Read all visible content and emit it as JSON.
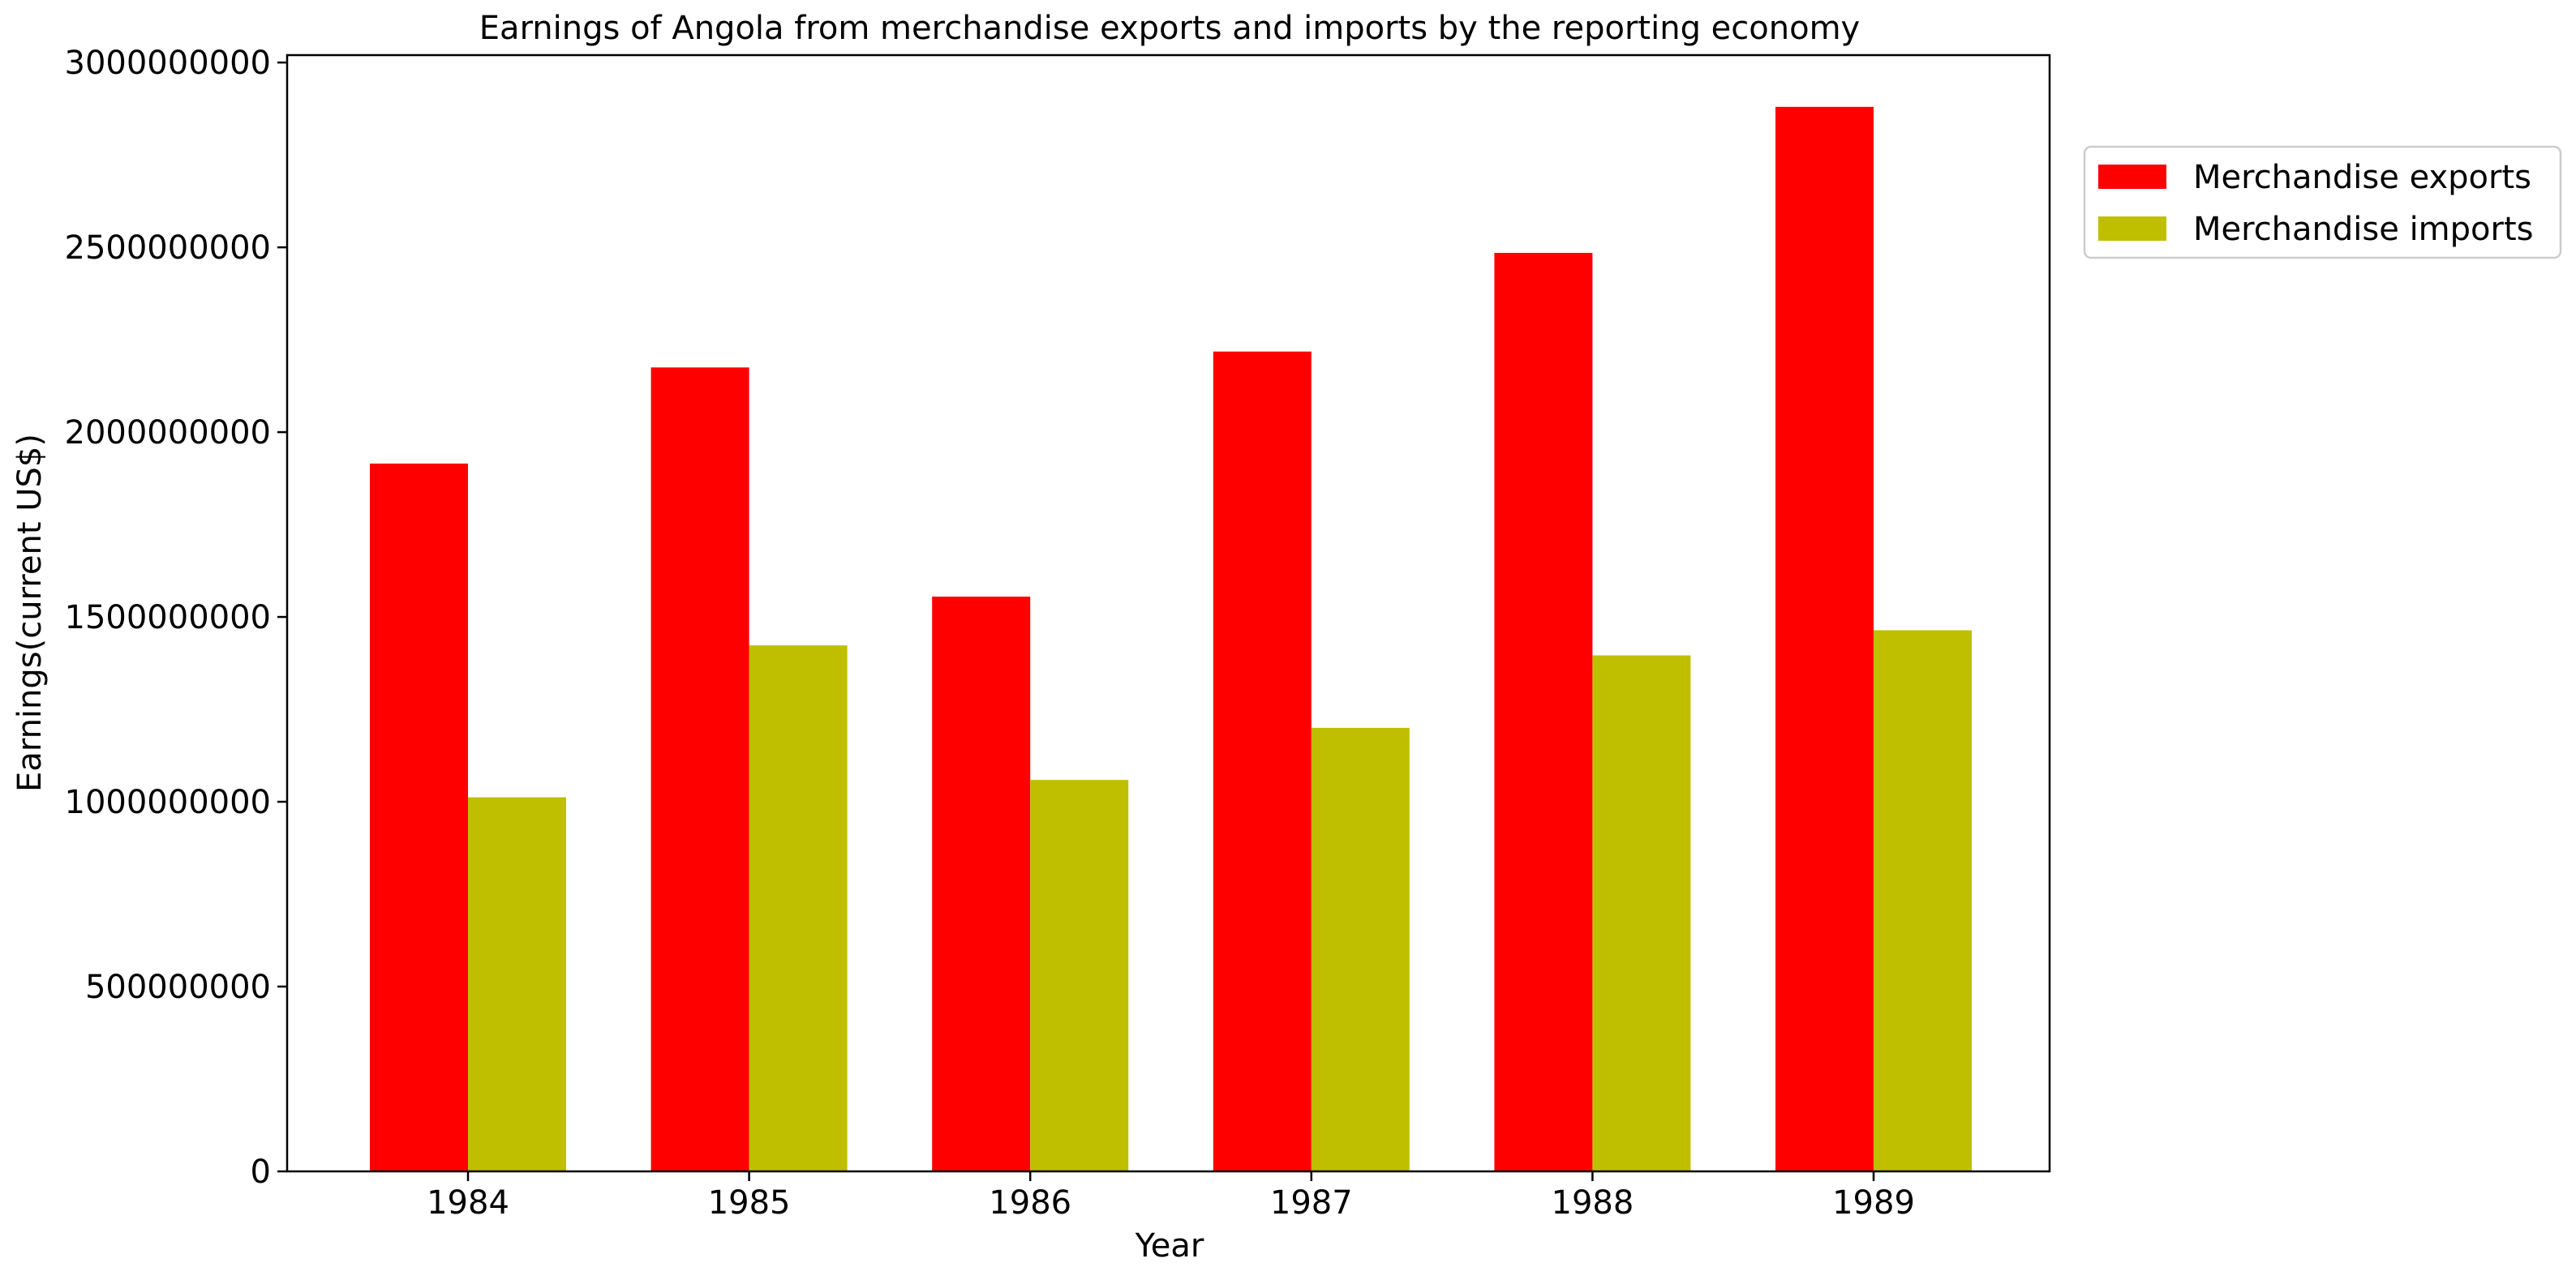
{
  "chart_data": {
    "type": "bar",
    "title": "Earnings of Angola from merchandise exports and imports by the reporting economy",
    "xlabel": "Year",
    "ylabel": "Earnings(current US$)",
    "categories": [
      "1984",
      "1985",
      "1986",
      "1987",
      "1988",
      "1989"
    ],
    "series": [
      {
        "name": "Merchandise exports",
        "color": "#ff0000",
        "values": [
          1915000000,
          2175000000,
          1555000000,
          2218000000,
          2485000000,
          2880000000
        ]
      },
      {
        "name": "Merchandise imports",
        "color": "#bfbf00",
        "values": [
          1012000000,
          1423000000,
          1059000000,
          1200000000,
          1396000000,
          1464000000
        ]
      }
    ],
    "ylim": [
      0,
      3020000000
    ],
    "yticks": [
      0,
      500000000,
      1000000000,
      1500000000,
      2000000000,
      2500000000,
      3000000000
    ],
    "ytick_labels": [
      "0",
      "500000000",
      "1000000000",
      "1500000000",
      "2000000000",
      "2500000000",
      "3000000000"
    ],
    "grid": false,
    "legend_position": "outside-top-right"
  }
}
